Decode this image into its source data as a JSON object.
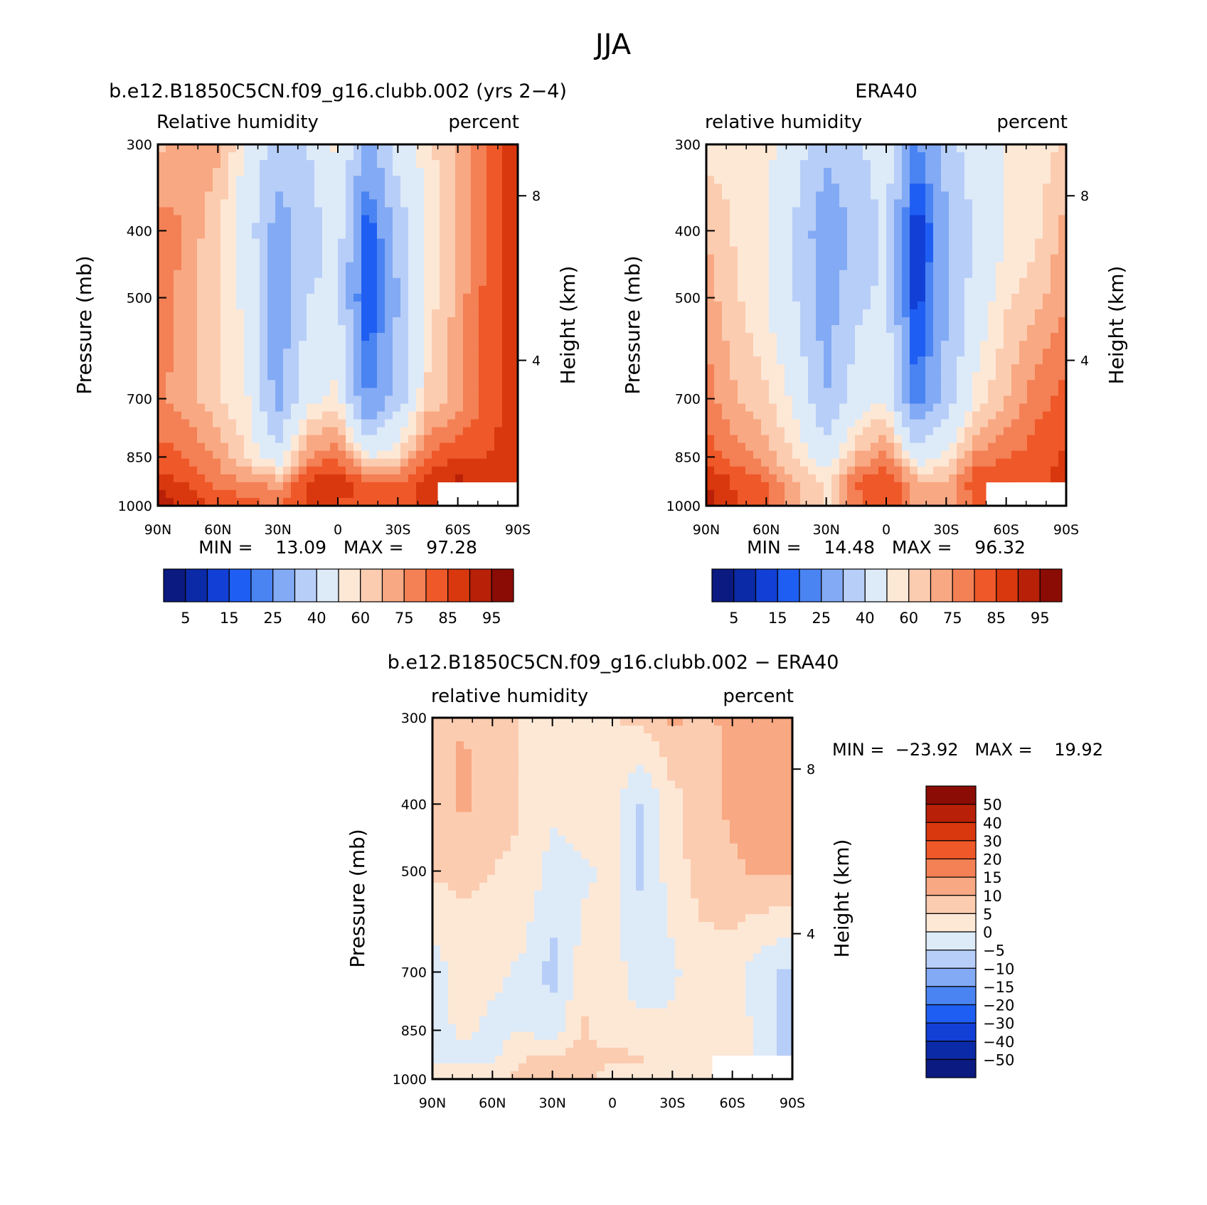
{
  "figure": {
    "title": "JJA"
  },
  "colors": {
    "abs_scale": [
      "#0a1a80",
      "#0b2aa8",
      "#1240d6",
      "#1f5ef2",
      "#4a84f2",
      "#83aaf4",
      "#b7cef8",
      "#ddeaf8",
      "#fde8d6",
      "#fcccb0",
      "#f8a882",
      "#f48055",
      "#ef5828",
      "#d9380e",
      "#b82008",
      "#8a0c04"
    ],
    "diff_scale": [
      "#0a1a80",
      "#0b2aa8",
      "#1240d6",
      "#1f5ef2",
      "#4a84f2",
      "#83aaf4",
      "#b7cef8",
      "#ddeaf8",
      "#fde8d6",
      "#fcccb0",
      "#f8a882",
      "#f48055",
      "#ef5828",
      "#d9380e",
      "#b82008",
      "#8a0c04"
    ]
  },
  "chart_data": [
    {
      "type": "heatmap",
      "title": "b.e12.B1850C5CN.f09_g16.clubb.002 (yrs 2−4)",
      "left_label": "Relative humidity",
      "right_label": "percent",
      "ylabel": "Pressure (mb)",
      "ylabel_right": "Height (km)",
      "x_ticks": [
        "90N",
        "60N",
        "30N",
        "0",
        "30S",
        "60S",
        "90S"
      ],
      "x_range": [
        90,
        -90
      ],
      "y_ticks": [
        "300",
        "400",
        "500",
        "700",
        "850",
        "1000"
      ],
      "y_range": [
        300,
        1000
      ],
      "y_scale": "log",
      "height_ticks": [
        "8",
        "4"
      ],
      "min_max": "MIN =    13.09   MAX =    97.28",
      "min": 13.09,
      "max": 97.28,
      "colorbar_labels": [
        "5",
        "15",
        "25",
        "40",
        "60",
        "75",
        "85",
        "95"
      ],
      "colorbar_levels": [
        5,
        10,
        15,
        20,
        25,
        30,
        40,
        50,
        60,
        65,
        70,
        75,
        80,
        85,
        90,
        95
      ],
      "lat": [
        90,
        75,
        60,
        45,
        30,
        15,
        0,
        -15,
        -30,
        -45,
        -60,
        -75,
        -90
      ],
      "levels": [
        300,
        400,
        500,
        700,
        850,
        925,
        1000
      ],
      "values": [
        [
          68,
          75,
          72,
          58,
          45,
          50,
          62,
          35,
          55,
          64,
          70,
          82,
          88
        ],
        [
          78,
          74,
          65,
          55,
          35,
          45,
          55,
          20,
          44,
          60,
          70,
          80,
          90
        ],
        [
          80,
          72,
          65,
          58,
          33,
          50,
          52,
          18,
          40,
          62,
          72,
          82,
          90
        ],
        [
          76,
          72,
          66,
          60,
          35,
          58,
          62,
          28,
          45,
          66,
          72,
          82,
          88
        ],
        [
          82,
          80,
          74,
          64,
          55,
          75,
          80,
          60,
          66,
          80,
          85,
          85,
          88
        ],
        [
          88,
          84,
          78,
          76,
          72,
          86,
          90,
          80,
          80,
          88,
          92,
          86,
          88
        ],
        [
          96,
          88,
          84,
          82,
          80,
          86,
          84,
          84,
          84,
          86,
          88,
          86,
          88
        ]
      ]
    },
    {
      "type": "heatmap",
      "title": "ERA40",
      "left_label": "relative humidity",
      "right_label": "percent",
      "ylabel": "Pressure (mb)",
      "ylabel_right": "Height (km)",
      "x_ticks": [
        "90N",
        "60N",
        "30N",
        "0",
        "30S",
        "60S",
        "90S"
      ],
      "x_range": [
        90,
        -90
      ],
      "y_ticks": [
        "300",
        "400",
        "500",
        "700",
        "850",
        "1000"
      ],
      "y_range": [
        300,
        1000
      ],
      "y_scale": "log",
      "height_ticks": [
        "8",
        "4"
      ],
      "min_max": "MIN =    14.48   MAX =    96.32",
      "min": 14.48,
      "max": 96.32,
      "colorbar_labels": [
        "5",
        "15",
        "25",
        "40",
        "60",
        "75",
        "85",
        "95"
      ],
      "colorbar_levels": [
        5,
        10,
        15,
        20,
        25,
        30,
        40,
        50,
        60,
        65,
        70,
        75,
        80,
        85,
        90,
        95
      ],
      "lat": [
        90,
        75,
        60,
        45,
        30,
        15,
        0,
        -15,
        -30,
        -45,
        -60,
        -75,
        -90
      ],
      "levels": [
        300,
        400,
        500,
        700,
        850,
        925,
        1000
      ],
      "values": [
        [
          62,
          64,
          62,
          55,
          42,
          48,
          56,
          28,
          45,
          56,
          60,
          62,
          66
        ],
        [
          70,
          64,
          60,
          48,
          32,
          42,
          52,
          14,
          38,
          52,
          60,
          64,
          72
        ],
        [
          72,
          66,
          60,
          50,
          34,
          48,
          52,
          16,
          38,
          55,
          64,
          68,
          74
        ],
        [
          78,
          70,
          66,
          58,
          40,
          55,
          60,
          25,
          45,
          62,
          70,
          78,
          82
        ],
        [
          82,
          78,
          72,
          64,
          55,
          70,
          78,
          55,
          62,
          76,
          80,
          82,
          86
        ],
        [
          90,
          84,
          80,
          70,
          64,
          80,
          86,
          72,
          70,
          84,
          86,
          82,
          88
        ],
        [
          92,
          86,
          82,
          72,
          64,
          78,
          84,
          74,
          72,
          82,
          86,
          84,
          88
        ]
      ]
    },
    {
      "type": "heatmap",
      "title": "b.e12.B1850C5CN.f09_g16.clubb.002 − ERA40",
      "left_label": "relative humidity",
      "right_label": "percent",
      "ylabel": "Pressure (mb)",
      "ylabel_right": "Height (km)",
      "x_ticks": [
        "90N",
        "60N",
        "30N",
        "0",
        "30S",
        "60S",
        "90S"
      ],
      "x_range": [
        90,
        -90
      ],
      "y_ticks": [
        "300",
        "400",
        "500",
        "700",
        "850",
        "1000"
      ],
      "y_range": [
        300,
        1000
      ],
      "y_scale": "log",
      "height_ticks": [
        "8",
        "4"
      ],
      "min_max": "MIN =  −23.92   MAX =    19.92",
      "min": -23.92,
      "max": 19.92,
      "colorbar_labels": [
        "50",
        "40",
        "30",
        "20",
        "15",
        "10",
        "5",
        "0",
        "−5",
        "−10",
        "−15",
        "−20",
        "−30",
        "−40",
        "−50"
      ],
      "colorbar_levels": [
        -50,
        -40,
        -30,
        -20,
        -15,
        -10,
        -5,
        0,
        5,
        10,
        15,
        20,
        30,
        40,
        50
      ],
      "lat": [
        90,
        75,
        60,
        45,
        30,
        15,
        0,
        -15,
        -30,
        -45,
        -60,
        -75,
        -90
      ],
      "levels": [
        300,
        400,
        500,
        700,
        850,
        925,
        1000
      ],
      "values": [
        [
          7,
          10,
          9,
          4,
          2,
          4,
          5,
          6,
          11,
          9,
          11,
          12,
          12
        ],
        [
          6,
          11,
          7,
          5,
          1,
          3,
          2,
          -6,
          3,
          8,
          11,
          13,
          14
        ],
        [
          6,
          6,
          5,
          4,
          -2,
          -1,
          1,
          -6,
          3,
          7,
          9,
          11,
          11
        ],
        [
          -3,
          3,
          1,
          -1,
          -7,
          2,
          3,
          -4,
          -1,
          3,
          2,
          -4,
          -6
        ],
        [
          -2,
          1,
          -1,
          0,
          -3,
          6,
          2,
          2,
          1,
          4,
          5,
          -3,
          -8
        ],
        [
          -2,
          -1,
          -1,
          4,
          6,
          6,
          6,
          5,
          3,
          2,
          3,
          -2,
          -10
        ],
        [
          4,
          2,
          2,
          8,
          10,
          6,
          3,
          5,
          5,
          4,
          2,
          2,
          1
        ]
      ]
    }
  ]
}
